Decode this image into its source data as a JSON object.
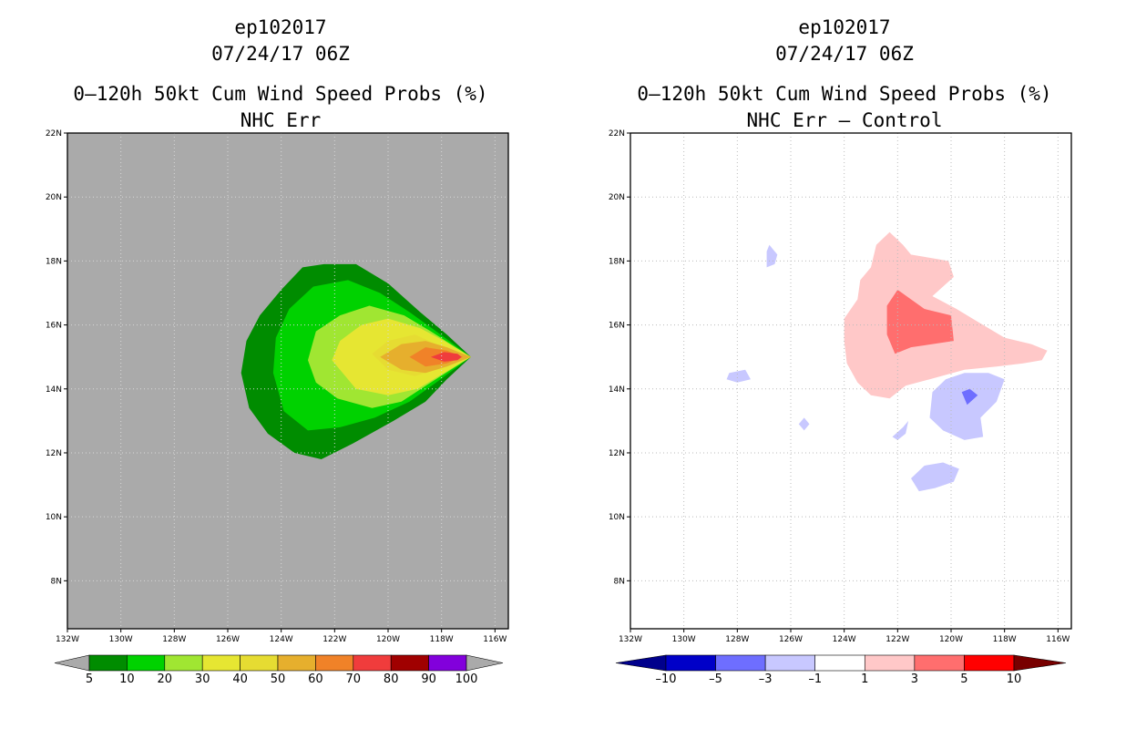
{
  "left_panel": {
    "title_line1": "ep102017",
    "title_line2": "07/24/17 06Z",
    "title_line3": "0–120h 50kt Cum Wind Speed Probs (%)",
    "title_line4": "NHC Err",
    "background_color": "#aaaaaa"
  },
  "right_panel": {
    "title_line1": "ep102017",
    "title_line2": "07/24/17 06Z",
    "title_line3": "0–120h 50kt Cum Wind Speed Probs (%)",
    "title_line4": "NHC Err – Control",
    "background_color": "#ffffff"
  },
  "chart_data": [
    {
      "type": "filled-contour-map",
      "title": "0–120h 50kt Cum Wind Speed Probs (%)",
      "subtitle": "NHC Err",
      "storm": "ep102017",
      "time": "07/24/17 06Z",
      "xlim": [
        -132,
        -115.5
      ],
      "ylim": [
        6.5,
        22
      ],
      "x_ticks": [
        "132W",
        "130W",
        "128W",
        "126W",
        "124W",
        "122W",
        "120W",
        "118W",
        "116W"
      ],
      "y_ticks": [
        "8N",
        "10N",
        "12N",
        "14N",
        "16N",
        "18N",
        "20N",
        "22N"
      ],
      "grid": true,
      "colorbar": {
        "levels": [
          "5",
          "10",
          "20",
          "30",
          "40",
          "50",
          "60",
          "70",
          "80",
          "90",
          "100"
        ],
        "colors": [
          "#008c00",
          "#00d200",
          "#a0e632",
          "#e6e632",
          "#e6dc32",
          "#e6af2d",
          "#f08228",
          "#f03c3c",
          "#a00000",
          "#8200dc"
        ]
      },
      "contours": [
        {
          "level": 5,
          "color": "#008c00",
          "points": [
            [
              -125.5,
              14.5
            ],
            [
              -125.3,
              15.5
            ],
            [
              -124.8,
              16.3
            ],
            [
              -124.0,
              17.1
            ],
            [
              -123.2,
              17.8
            ],
            [
              -122.4,
              17.9
            ],
            [
              -121.2,
              17.9
            ],
            [
              -120.0,
              17.3
            ],
            [
              -118.8,
              16.4
            ],
            [
              -117.8,
              15.7
            ],
            [
              -116.9,
              15.0
            ],
            [
              -117.8,
              14.3
            ],
            [
              -118.6,
              13.6
            ],
            [
              -119.8,
              13.0
            ],
            [
              -121.3,
              12.3
            ],
            [
              -122.5,
              11.8
            ],
            [
              -123.5,
              12.0
            ],
            [
              -124.5,
              12.6
            ],
            [
              -125.2,
              13.4
            ]
          ]
        },
        {
          "level": 10,
          "color": "#00d200",
          "points": [
            [
              -124.3,
              14.5
            ],
            [
              -124.2,
              15.6
            ],
            [
              -123.7,
              16.5
            ],
            [
              -122.8,
              17.2
            ],
            [
              -121.5,
              17.4
            ],
            [
              -120.3,
              17.0
            ],
            [
              -119.2,
              16.4
            ],
            [
              -118.2,
              15.8
            ],
            [
              -116.9,
              15.0
            ],
            [
              -118.2,
              14.2
            ],
            [
              -119.2,
              13.6
            ],
            [
              -120.5,
              13.1
            ],
            [
              -121.8,
              12.8
            ],
            [
              -123.0,
              12.7
            ],
            [
              -123.9,
              13.3
            ]
          ]
        },
        {
          "level": 20,
          "color": "#a0e632",
          "points": [
            [
              -123.0,
              14.9
            ],
            [
              -122.7,
              15.8
            ],
            [
              -121.8,
              16.3
            ],
            [
              -120.7,
              16.6
            ],
            [
              -119.4,
              16.3
            ],
            [
              -118.4,
              15.8
            ],
            [
              -116.9,
              15.0
            ],
            [
              -118.4,
              14.2
            ],
            [
              -119.5,
              13.6
            ],
            [
              -120.6,
              13.4
            ],
            [
              -121.9,
              13.7
            ],
            [
              -122.7,
              14.2
            ]
          ]
        },
        {
          "level": 30,
          "color": "#e6e632",
          "points": [
            [
              -122.1,
              14.9
            ],
            [
              -121.8,
              15.5
            ],
            [
              -121.0,
              16.0
            ],
            [
              -120.0,
              16.2
            ],
            [
              -118.8,
              15.9
            ],
            [
              -117.9,
              15.5
            ],
            [
              -116.9,
              15.0
            ],
            [
              -117.9,
              14.5
            ],
            [
              -118.9,
              14.0
            ],
            [
              -120.0,
              13.8
            ],
            [
              -121.2,
              14.0
            ]
          ]
        },
        {
          "level": 40,
          "color": "#e6dc32",
          "points": [
            [
              -120.6,
              15.1
            ],
            [
              -120.0,
              15.5
            ],
            [
              -119.0,
              15.7
            ],
            [
              -118.2,
              15.4
            ],
            [
              -116.9,
              15.0
            ],
            [
              -118.2,
              14.6
            ],
            [
              -119.0,
              14.4
            ],
            [
              -120.0,
              14.6
            ]
          ]
        },
        {
          "level": 50,
          "color": "#e6af2d",
          "points": [
            [
              -120.3,
              15.0
            ],
            [
              -119.5,
              15.4
            ],
            [
              -118.6,
              15.5
            ],
            [
              -117.8,
              15.3
            ],
            [
              -116.9,
              15.0
            ],
            [
              -117.8,
              14.7
            ],
            [
              -118.6,
              14.5
            ],
            [
              -119.5,
              14.6
            ]
          ]
        },
        {
          "level": 60,
          "color": "#f08228",
          "points": [
            [
              -119.2,
              15.0
            ],
            [
              -118.6,
              15.3
            ],
            [
              -117.8,
              15.2
            ],
            [
              -117.2,
              15.0
            ],
            [
              -117.8,
              14.8
            ],
            [
              -118.6,
              14.7
            ]
          ]
        },
        {
          "level": 70,
          "color": "#f03c3c",
          "points": [
            [
              -118.4,
              15.0
            ],
            [
              -117.9,
              15.15
            ],
            [
              -117.4,
              15.1
            ],
            [
              -117.25,
              15.0
            ],
            [
              -117.4,
              14.9
            ],
            [
              -117.9,
              14.85
            ]
          ]
        }
      ]
    },
    {
      "type": "filled-contour-map",
      "title": "0–120h 50kt Cum Wind Speed Probs (%)",
      "subtitle": "NHC Err – Control",
      "storm": "ep102017",
      "time": "07/24/17 06Z",
      "xlim": [
        -132,
        -115.5
      ],
      "ylim": [
        6.5,
        22
      ],
      "x_ticks": [
        "132W",
        "130W",
        "128W",
        "126W",
        "124W",
        "122W",
        "120W",
        "118W",
        "116W"
      ],
      "y_ticks": [
        "8N",
        "10N",
        "12N",
        "14N",
        "16N",
        "18N",
        "20N",
        "22N"
      ],
      "grid": true,
      "colorbar": {
        "levels": [
          "–10",
          "–5",
          "–3",
          "–1",
          "1",
          "3",
          "5",
          "10"
        ],
        "colors": [
          "#0000c8",
          "#6e6eff",
          "#c8c8ff",
          "#ffffff",
          "#ffc8c8",
          "#ff6e6e",
          "#ff0000"
        ],
        "end_colors": [
          "#00008c",
          "#780000"
        ]
      },
      "contours": [
        {
          "level": 1,
          "color": "#ffc8c8",
          "points": [
            [
              -124.0,
              15.5
            ],
            [
              -124.0,
              16.2
            ],
            [
              -123.5,
              16.8
            ],
            [
              -123.4,
              17.4
            ],
            [
              -123.0,
              17.8
            ],
            [
              -122.8,
              18.5
            ],
            [
              -122.3,
              18.9
            ],
            [
              -121.8,
              18.5
            ],
            [
              -121.5,
              18.2
            ],
            [
              -120.8,
              18.1
            ],
            [
              -120.1,
              18.0
            ],
            [
              -119.9,
              17.5
            ],
            [
              -120.7,
              16.9
            ],
            [
              -119.8,
              16.5
            ],
            [
              -119.0,
              16.1
            ],
            [
              -118.0,
              15.6
            ],
            [
              -117.0,
              15.4
            ],
            [
              -116.4,
              15.2
            ],
            [
              -116.6,
              14.9
            ],
            [
              -117.3,
              14.8
            ],
            [
              -118.3,
              14.7
            ],
            [
              -119.5,
              14.6
            ],
            [
              -120.8,
              14.3
            ],
            [
              -121.7,
              14.1
            ],
            [
              -122.3,
              13.7
            ],
            [
              -123.0,
              13.8
            ],
            [
              -123.5,
              14.2
            ],
            [
              -123.9,
              14.8
            ]
          ]
        },
        {
          "level": 3,
          "color": "#ff6e6e",
          "points": [
            [
              -122.4,
              15.7
            ],
            [
              -122.4,
              16.6
            ],
            [
              -122.0,
              17.1
            ],
            [
              -121.5,
              16.8
            ],
            [
              -121.0,
              16.5
            ],
            [
              -120.0,
              16.3
            ],
            [
              -119.9,
              15.5
            ],
            [
              -120.7,
              15.4
            ],
            [
              -121.5,
              15.3
            ],
            [
              -122.1,
              15.1
            ]
          ]
        },
        {
          "level": -1,
          "color": "#c8c8ff",
          "points": [
            [
              -120.8,
              13.1
            ],
            [
              -120.7,
              13.9
            ],
            [
              -120.2,
              14.3
            ],
            [
              -119.5,
              14.5
            ],
            [
              -118.6,
              14.5
            ],
            [
              -118.0,
              14.3
            ],
            [
              -118.3,
              13.6
            ],
            [
              -118.9,
              13.1
            ],
            [
              -118.8,
              12.5
            ],
            [
              -119.5,
              12.4
            ],
            [
              -120.3,
              12.7
            ]
          ]
        },
        {
          "level": -1,
          "color": "#c8c8ff",
          "points": [
            [
              -121.5,
              11.2
            ],
            [
              -121.0,
              11.6
            ],
            [
              -120.3,
              11.7
            ],
            [
              -119.7,
              11.5
            ],
            [
              -119.9,
              11.1
            ],
            [
              -120.6,
              10.9
            ],
            [
              -121.2,
              10.8
            ]
          ]
        },
        {
          "level": -1,
          "color": "#c8c8ff",
          "points": [
            [
              -122.2,
              12.5
            ],
            [
              -121.8,
              12.8
            ],
            [
              -121.6,
              13.0
            ],
            [
              -121.7,
              12.6
            ],
            [
              -122.0,
              12.4
            ]
          ]
        },
        {
          "level": -1,
          "color": "#c8c8ff",
          "points": [
            [
              -128.3,
              14.5
            ],
            [
              -127.7,
              14.6
            ],
            [
              -127.5,
              14.3
            ],
            [
              -128.0,
              14.2
            ],
            [
              -128.4,
              14.3
            ]
          ]
        },
        {
          "level": -1,
          "color": "#c8c8ff",
          "points": [
            [
              -126.8,
              18.5
            ],
            [
              -126.5,
              18.2
            ],
            [
              -126.6,
              17.9
            ],
            [
              -126.9,
              17.8
            ],
            [
              -126.9,
              18.3
            ]
          ]
        },
        {
          "level": -1,
          "color": "#c8c8ff",
          "points": [
            [
              -125.7,
              12.9
            ],
            [
              -125.5,
              13.1
            ],
            [
              -125.3,
              12.9
            ],
            [
              -125.5,
              12.7
            ]
          ]
        },
        {
          "level": -3,
          "color": "#6e6eff",
          "points": [
            [
              -119.6,
              13.9
            ],
            [
              -119.3,
              14.0
            ],
            [
              -119.0,
              13.8
            ],
            [
              -119.4,
              13.5
            ]
          ]
        }
      ]
    }
  ]
}
